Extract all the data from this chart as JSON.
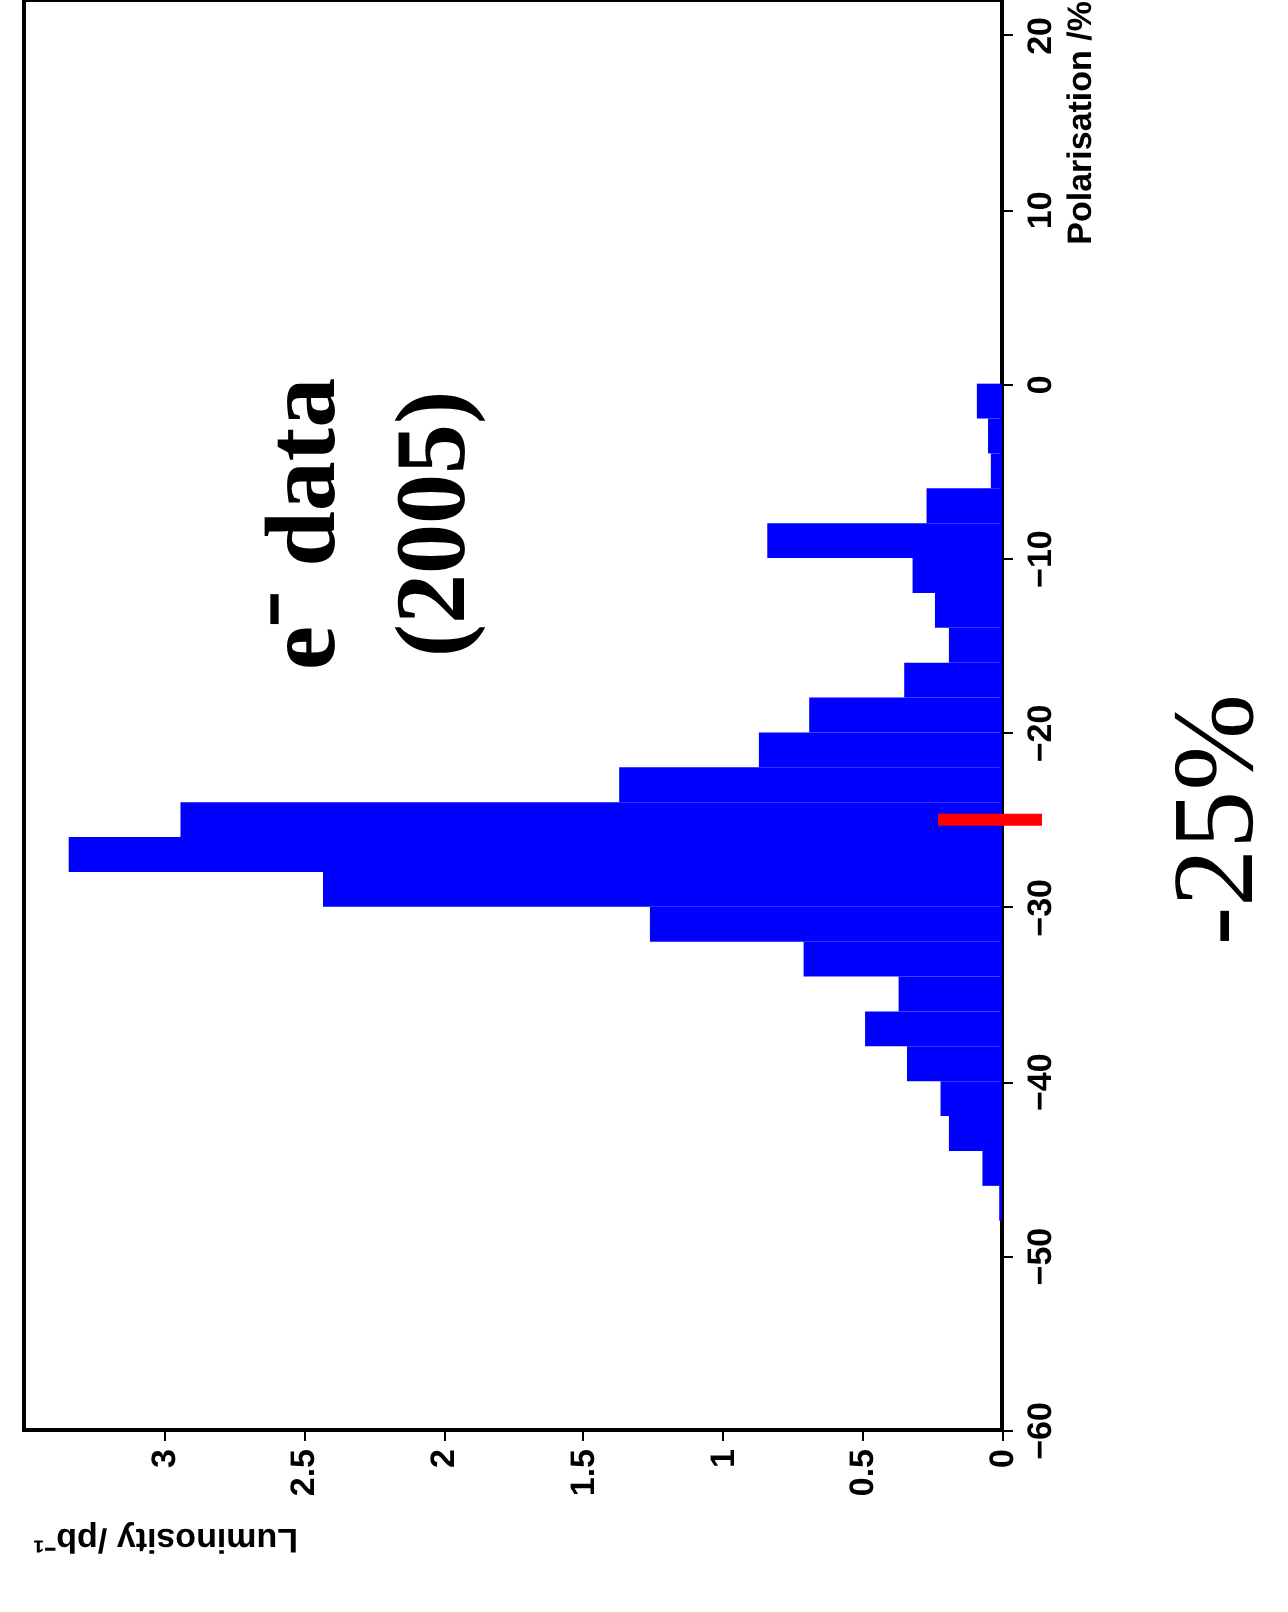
{
  "chart_data": {
    "type": "histogram",
    "orientation": "horizontal",
    "color": "#0000ff",
    "bins": [
      -48,
      -46,
      -44,
      -42,
      -40,
      -38,
      -36,
      -34,
      -32,
      -30,
      -28,
      -26,
      -24,
      -22,
      -20,
      -18,
      -16,
      -14,
      -12,
      -10,
      -8,
      -6,
      -4,
      -2,
      0
    ],
    "values": [
      0.01,
      0.07,
      0.19,
      0.22,
      0.34,
      0.49,
      0.37,
      0.71,
      1.26,
      2.43,
      3.34,
      2.94,
      1.37,
      0.87,
      0.69,
      0.35,
      0.19,
      0.24,
      0.32,
      0.84,
      0.27,
      0.04,
      0.05,
      0.09
    ],
    "xlabel": "Luminosity /pb⁻¹",
    "ylabel": "Polarisation /%",
    "xlim": [
      3.5,
      0
    ],
    "xticks": [
      0,
      0.5,
      1,
      1.5,
      2,
      2.5,
      3
    ],
    "ylim": [
      -60,
      22
    ],
    "yticks": [
      -60,
      -50,
      -40,
      -30,
      -20,
      -10,
      0,
      10,
      20
    ],
    "grid": false,
    "ref_lines": [
      {
        "axis": "y",
        "value": -25,
        "label": "-25%",
        "color": "#ff0000"
      }
    ],
    "annotations": [
      "e⁻ data",
      "(2005)"
    ]
  }
}
